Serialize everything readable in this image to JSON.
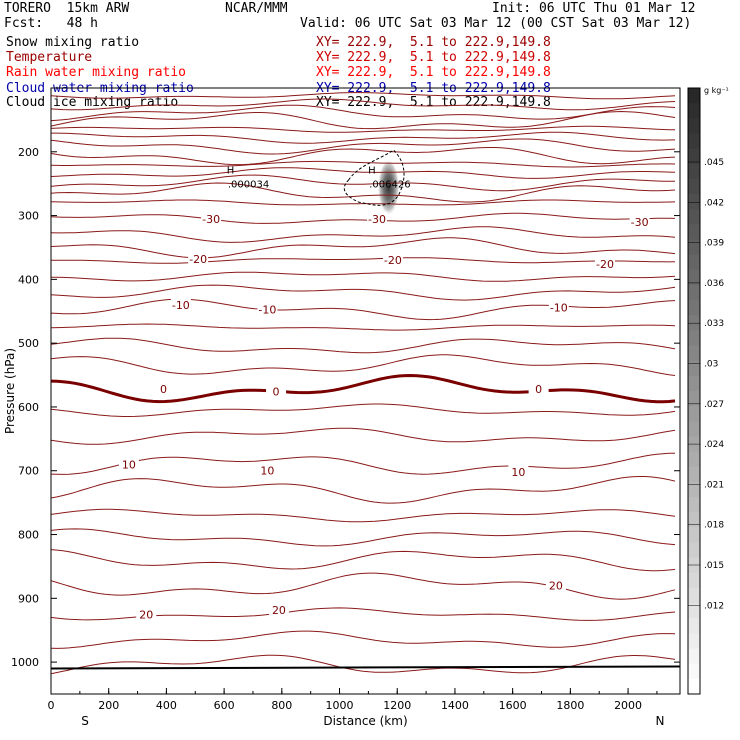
{
  "header": {
    "model": "TORERO  15km ARW",
    "forecast": "Fcst:   48 h",
    "center": "NCAR/MMM",
    "init": "Init: 06 UTC Thu 01 Mar 12",
    "valid": "Valid: 06 UTC Sat 03 Mar 12 (00 CST Sat 03 Mar 12)"
  },
  "legend": [
    {
      "field": "Snow mixing ratio",
      "xy": "",
      "color": "#000000"
    },
    {
      "field": "Temperature",
      "xy": "XY= 222.9,  5.1 to 222.9,149.8",
      "color": "#990000"
    },
    {
      "field": "Rain water mixing ratio",
      "xy": "XY= 222.9,  5.1 to 222.9,149.8",
      "color": "#ff0000"
    },
    {
      "field": "Cloud water mixing ratio",
      "xy": "XY= 222.9,  5.1 to 222.9,149.8",
      "color": "#0000aa"
    },
    {
      "field": "Cloud ice mixing ratio",
      "xy": "XY= 222.9,  5.1 to 222.9,149.8",
      "color": "#000000"
    }
  ],
  "legend_xy_first": "XY= 222.9,  5.1 to 222.9,149.8",
  "colorbar": {
    "unit": "g kg⁻¹",
    "ticks": [
      ".045",
      ".042",
      ".039",
      ".036",
      ".033",
      ".03",
      ".027",
      ".024",
      ".021",
      ".018",
      ".015",
      ".012"
    ]
  },
  "chart_data": {
    "type": "contour",
    "xlabel": "Distance (km)",
    "ylabel": "Pressure (hPa)",
    "xlim": [
      0,
      2180
    ],
    "ylim": [
      1050,
      100
    ],
    "x_ticks": [
      0,
      200,
      400,
      600,
      800,
      1000,
      1200,
      1400,
      1600,
      1800,
      2000
    ],
    "y_ticks": [
      200,
      300,
      400,
      500,
      600,
      700,
      800,
      900,
      1000
    ],
    "x_end_labels": {
      "left": "S",
      "right": "N"
    },
    "extrema": [
      {
        "label": "H",
        "value": ".000034",
        "x": 650,
        "p": 250
      },
      {
        "label": "H",
        "value": ".006426",
        "x": 1140,
        "p": 250
      }
    ],
    "temperature_labels": [
      {
        "text": "-30",
        "x": 555,
        "p": 305
      },
      {
        "text": "-30",
        "x": 1130,
        "p": 305
      },
      {
        "text": "-30",
        "x": 2040,
        "p": 310
      },
      {
        "text": "-20",
        "x": 510,
        "p": 368
      },
      {
        "text": "-20",
        "x": 1185,
        "p": 370
      },
      {
        "text": "-20",
        "x": 1920,
        "p": 376
      },
      {
        "text": "-10",
        "x": 450,
        "p": 440
      },
      {
        "text": "-10",
        "x": 750,
        "p": 447
      },
      {
        "text": "-10",
        "x": 1760,
        "p": 444
      },
      {
        "text": "0",
        "x": 390,
        "p": 572
      },
      {
        "text": "0",
        "x": 780,
        "p": 576
      },
      {
        "text": "0",
        "x": 1690,
        "p": 572
      },
      {
        "text": "10",
        "x": 270,
        "p": 690
      },
      {
        "text": "10",
        "x": 750,
        "p": 700
      },
      {
        "text": "10",
        "x": 1620,
        "p": 702
      },
      {
        "text": "20",
        "x": 330,
        "p": 925
      },
      {
        "text": "20",
        "x": 790,
        "p": 918
      },
      {
        "text": "20",
        "x": 1750,
        "p": 880
      }
    ],
    "isotherm_pressures_hPa": [
      112,
      126,
      139,
      152,
      165,
      178,
      191,
      205,
      219,
      233,
      249,
      265,
      280,
      305,
      330,
      350,
      370,
      395,
      420,
      447,
      475,
      505,
      535,
      572,
      605,
      645,
      690,
      730,
      770,
      805,
      840,
      880,
      925,
      965,
      1005
    ],
    "zero_isotherm_hPa": 572,
    "surface_hPa": 1010,
    "ice_maximum": {
      "x": 1170,
      "p_top": 215,
      "p_bottom": 305,
      "max": 0.045
    }
  }
}
